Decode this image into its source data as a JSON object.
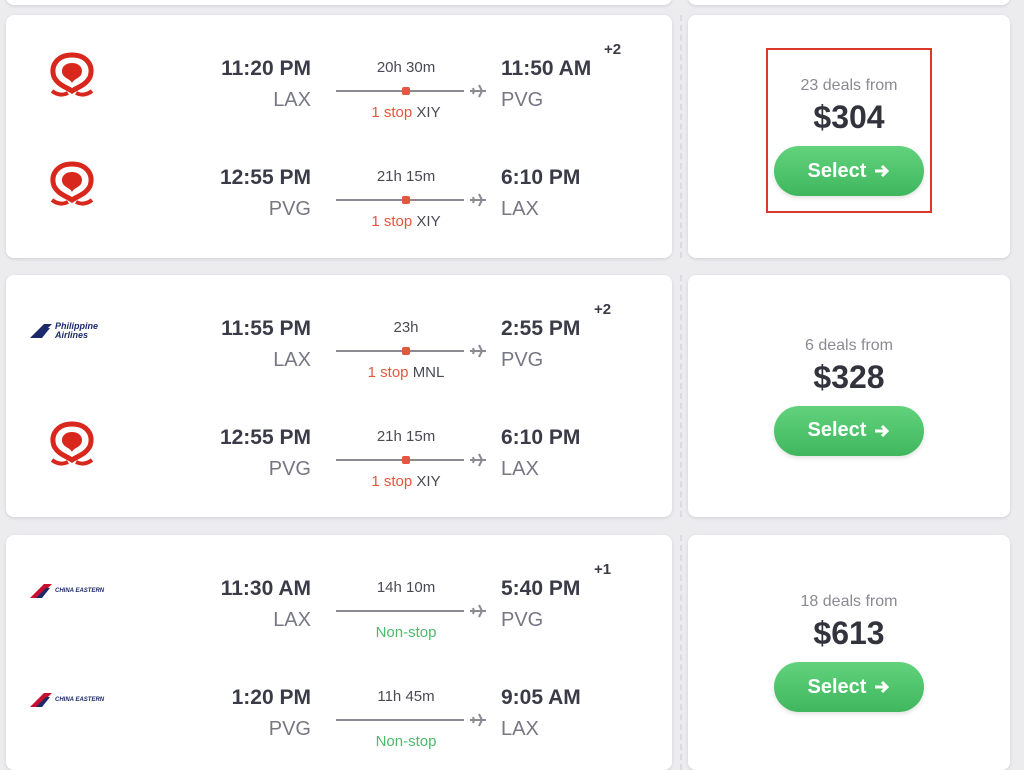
{
  "results": [
    {
      "legs": [
        {
          "logo_color": "#d8271c",
          "depart_time": "11:20 PM",
          "depart_airport": "LAX",
          "duration": "20h 30m",
          "stops": "1 stop",
          "via": "XIY",
          "arrive_time": "11:50 AM",
          "arrive_offset": "+2",
          "arrive_airport": "PVG"
        },
        {
          "logo_color": "#d8271c",
          "depart_time": "12:55 PM",
          "depart_airport": "PVG",
          "duration": "21h 15m",
          "stops": "1 stop",
          "via": "XIY",
          "arrive_time": "6:10 PM",
          "arrive_airport": "LAX"
        }
      ],
      "deals": "23 deals from",
      "price": "$304",
      "button": "Select",
      "highlighted": true
    },
    {
      "legs": [
        {
          "logo_color": "#1c2a6b",
          "logo_text": "Philippine Airlines",
          "depart_time": "11:55 PM",
          "depart_airport": "LAX",
          "duration": "23h",
          "stops": "1 stop",
          "via": "MNL",
          "arrive_time": "2:55 PM",
          "arrive_offset": "+2",
          "arrive_airport": "PVG"
        },
        {
          "logo_color": "#d8271c",
          "depart_time": "12:55 PM",
          "depart_airport": "PVG",
          "duration": "21h 15m",
          "stops": "1 stop",
          "via": "XIY",
          "arrive_time": "6:10 PM",
          "arrive_airport": "LAX"
        }
      ],
      "deals": "6 deals from",
      "price": "$328",
      "button": "Select",
      "highlighted": false
    },
    {
      "legs": [
        {
          "logo_color": "#c8102e",
          "logo_text": "CHINA EASTERN",
          "depart_time": "11:30 AM",
          "depart_airport": "LAX",
          "duration": "14h 10m",
          "stops": "Non-stop",
          "arrive_time": "5:40 PM",
          "arrive_offset": "+1",
          "arrive_airport": "PVG"
        },
        {
          "logo_color": "#c8102e",
          "logo_text": "CHINA EASTERN",
          "depart_time": "1:20 PM",
          "depart_airport": "PVG",
          "duration": "11h 45m",
          "stops": "Non-stop",
          "arrive_time": "9:05 AM",
          "arrive_airport": "LAX"
        }
      ],
      "deals": "18 deals from",
      "price": "$613",
      "button": "Select",
      "highlighted": false
    }
  ]
}
